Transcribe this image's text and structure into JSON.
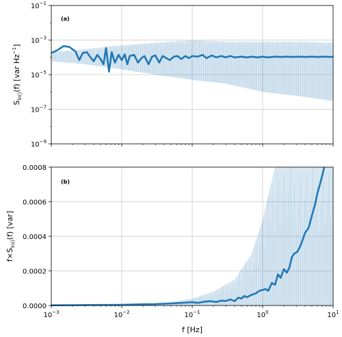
{
  "chart_data": [
    {
      "panel": "(a)",
      "type": "line",
      "x_scale": "log",
      "y_scale": "log",
      "xlim": [
        0.001,
        10
      ],
      "ylim": [
        1e-09,
        0.1
      ],
      "ylabel": {
        "base": "S",
        "sub": "ln()",
        "rest": "(f) [var Hz",
        "sup": "−1",
        "close": "]"
      },
      "xtick_labels": [
        {
          "base": "10",
          "exp": "−3",
          "value": 0.001
        },
        {
          "base": "10",
          "exp": "−2",
          "value": 0.01
        },
        {
          "base": "10",
          "exp": "−1",
          "value": 0.1
        },
        {
          "base": "10",
          "exp": "0",
          "value": 1
        },
        {
          "base": "10",
          "exp": "1",
          "value": 10
        }
      ],
      "ytick_labels": [
        {
          "base": "10",
          "exp": "−9",
          "value": 1e-09
        },
        {
          "base": "10",
          "exp": "−7",
          "value": 1e-07
        },
        {
          "base": "10",
          "exp": "−5",
          "value": 1e-05
        },
        {
          "base": "10",
          "exp": "−3",
          "value": 0.001
        },
        {
          "base": "10",
          "exp": "−1",
          "value": 0.1
        }
      ],
      "grid": true,
      "series": [
        {
          "role": "raw spectrum (light band)",
          "color": "#1f77b4",
          "band_x": [
            0.001,
            0.003,
            0.01,
            0.03,
            0.1,
            0.3,
            1,
            3,
            10
          ],
          "band_low": [
            6e-05,
            4e-05,
            2e-05,
            1e-05,
            5e-06,
            3e-06,
            1e-06,
            6e-07,
            3e-07
          ],
          "band_high": [
            0.0002,
            0.0003,
            0.0005,
            0.0007,
            0.001,
            0.0008,
            0.0008,
            0.0008,
            0.0007
          ]
        },
        {
          "role": "smoothed spectrum",
          "color": "#1f77b4",
          "x": [
            0.001,
            0.0012,
            0.0015,
            0.0018,
            0.0022,
            0.0025,
            0.0028,
            0.0032,
            0.0036,
            0.004,
            0.0045,
            0.005,
            0.0055,
            0.006,
            0.0066,
            0.0072,
            0.008,
            0.009,
            0.01,
            0.011,
            0.012,
            0.013,
            0.015,
            0.017,
            0.019,
            0.021,
            0.024,
            0.027,
            0.03,
            0.034,
            0.038,
            0.043,
            0.048,
            0.055,
            0.062,
            0.07,
            0.08,
            0.09,
            0.1,
            0.12,
            0.14,
            0.16,
            0.19,
            0.22,
            0.26,
            0.3,
            0.35,
            0.4,
            0.5,
            0.6,
            0.7,
            0.85,
            1,
            1.2,
            1.5,
            1.8,
            2.2,
            2.7,
            3.3,
            4,
            5,
            6,
            7.5,
            9,
            10
          ],
          "y": [
            0.00018,
            0.00025,
            0.00045,
            0.0004,
            0.00022,
            7e-05,
            0.00018,
            0.0002,
            0.0001,
            6e-05,
            0.00014,
            8e-05,
            4e-05,
            0.00035,
            1.5e-05,
            0.0002,
            5e-05,
            0.00014,
            7e-05,
            0.00015,
            4e-05,
            0.00012,
            0.00014,
            5e-05,
            9e-05,
            0.00012,
            4e-05,
            0.00011,
            0.00013,
            5e-05,
            0.00012,
            9e-05,
            7e-05,
            0.00011,
            0.00012,
            8e-05,
            0.00012,
            9e-05,
            0.00012,
            0.00011,
            0.00014,
            9e-05,
            0.00013,
            0.0001,
            0.00012,
            0.0001,
            0.00012,
            0.0001,
            0.00011,
            0.0001,
            0.00011,
            0.0001,
            0.00011,
            0.0001,
            0.00011,
            0.000105,
            0.00011,
            0.000105,
            0.00011,
            0.000105,
            0.00011,
            0.000105,
            0.00011,
            0.000105,
            0.00011
          ]
        }
      ]
    },
    {
      "panel": "(b)",
      "type": "line",
      "x_scale": "log",
      "y_scale": "linear",
      "xlim": [
        0.001,
        10
      ],
      "ylim": [
        0,
        0.0008
      ],
      "xlabel": "f [Hz]",
      "ylabel": {
        "base": "f×S",
        "sub": "ln()",
        "rest": "(f) [var]"
      },
      "xtick_labels": [
        {
          "base": "10",
          "exp": "−3",
          "value": 0.001
        },
        {
          "base": "10",
          "exp": "−2",
          "value": 0.01
        },
        {
          "base": "10",
          "exp": "−1",
          "value": 0.1
        },
        {
          "base": "10",
          "exp": "0",
          "value": 1
        },
        {
          "base": "10",
          "exp": "1",
          "value": 10
        }
      ],
      "ytick_labels": [
        "0.0000",
        "0.0002",
        "0.0004",
        "0.0006",
        "0.0008"
      ],
      "ytick_values": [
        0,
        0.0002,
        0.0004,
        0.0006,
        0.0008
      ],
      "grid": true,
      "series": [
        {
          "role": "raw premultiplied spectrum (light band)",
          "color": "#1f77b4",
          "band_x": [
            0.001,
            0.01,
            0.05,
            0.1,
            0.2,
            0.4,
            0.7,
            1,
            1.5,
            2,
            3,
            5,
            10
          ],
          "band_low": [
            0,
            0,
            0,
            0,
            0,
            0,
            0,
            0,
            0,
            0,
            0,
            0,
            0
          ],
          "band_high": [
            1e-06,
            5e-06,
            2e-05,
            4e-05,
            8e-05,
            0.00015,
            0.0003,
            0.0005,
            0.0008,
            0.0008,
            0.0008,
            0.0008,
            0.0008
          ]
        },
        {
          "role": "smoothed premultiplied spectrum",
          "color": "#1f77b4",
          "x": [
            0.001,
            0.002,
            0.005,
            0.01,
            0.02,
            0.03,
            0.05,
            0.07,
            0.1,
            0.12,
            0.15,
            0.18,
            0.22,
            0.26,
            0.3,
            0.35,
            0.4,
            0.45,
            0.5,
            0.55,
            0.6,
            0.7,
            0.8,
            0.9,
            1,
            1.1,
            1.2,
            1.35,
            1.5,
            1.65,
            1.8,
            2,
            2.2,
            2.4,
            2.6,
            2.8,
            3.1,
            3.4,
            3.7,
            4,
            4.5,
            5,
            5.5,
            6,
            6.5,
            7,
            7.5
          ],
          "y": [
            1e-06,
            2e-06,
            3e-06,
            4e-06,
            7e-06,
            8e-06,
            1.2e-05,
            1.5e-05,
            1.9e-05,
            1.5e-05,
            2.2e-05,
            2.5e-05,
            2e-05,
            2.8e-05,
            2.6e-05,
            3.5e-05,
            2.5e-05,
            4.5e-05,
            4e-05,
            5.5e-05,
            4.8e-05,
            6.2e-05,
            7e-05,
            8.5e-05,
            9e-05,
            9.5e-05,
            8.5e-05,
            0.00013,
            0.00012,
            0.00018,
            0.00016,
            0.00021,
            0.00019,
            0.00022,
            0.00028,
            0.0003,
            0.00031,
            0.00034,
            0.00038,
            0.00042,
            0.00045,
            0.00052,
            0.00058,
            0.00065,
            0.0007,
            0.00075,
            0.0008
          ]
        }
      ]
    }
  ]
}
